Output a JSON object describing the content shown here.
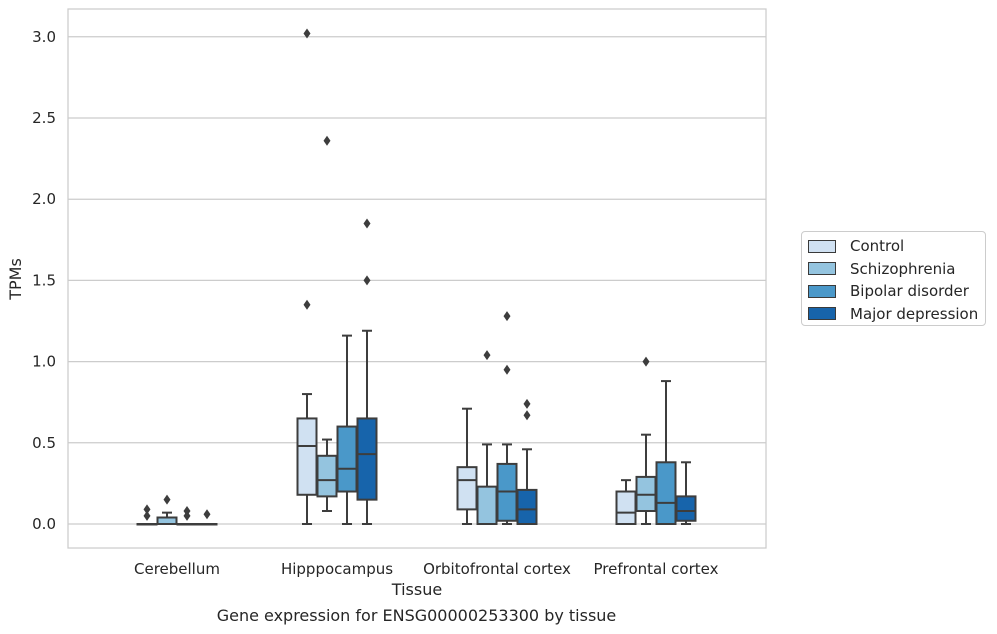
{
  "chart_data": {
    "type": "box",
    "xlabel": "Tissue",
    "ylabel": "TPMs",
    "ylim": [
      -0.15,
      3.18
    ],
    "yticks": [
      "0.0",
      "0.5",
      "1.0",
      "1.5",
      "2.0",
      "2.5",
      "3.0"
    ],
    "ytick_values": [
      0,
      0.5,
      1.0,
      1.5,
      2.0,
      2.5,
      3.0
    ],
    "grid": true,
    "legend_position": "outside-right",
    "categories": [
      "Cerebellum",
      "Hipppocampus",
      "Orbitofrontal cortex",
      "Prefrontal cortex"
    ],
    "series": [
      {
        "name": "Control",
        "color": "#d0e1f2",
        "boxes": [
          {
            "whislo": 0,
            "q1": 0,
            "med": 0,
            "q3": 0,
            "whishi": 0,
            "fliers": [
              0.05,
              0.09
            ]
          },
          {
            "whislo": 0,
            "q1": 0.18,
            "med": 0.48,
            "q3": 0.65,
            "whishi": 0.8,
            "fliers": [
              1.35,
              3.02
            ]
          },
          {
            "whislo": 0,
            "q1": 0.09,
            "med": 0.27,
            "q3": 0.35,
            "whishi": 0.71,
            "fliers": []
          },
          {
            "whislo": 0,
            "q1": 0,
            "med": 0.07,
            "q3": 0.2,
            "whishi": 0.27,
            "fliers": []
          }
        ]
      },
      {
        "name": "Schizophrenia",
        "color": "#94c4df",
        "boxes": [
          {
            "whislo": 0,
            "q1": 0,
            "med": 0,
            "q3": 0.04,
            "whishi": 0.07,
            "fliers": [
              0.15
            ]
          },
          {
            "whislo": 0.08,
            "q1": 0.17,
            "med": 0.27,
            "q3": 0.42,
            "whishi": 0.52,
            "fliers": [
              2.36
            ]
          },
          {
            "whislo": 0,
            "q1": 0,
            "med": 0,
            "q3": 0.23,
            "whishi": 0.49,
            "fliers": [
              1.04
            ]
          },
          {
            "whislo": 0,
            "q1": 0.08,
            "med": 0.18,
            "q3": 0.29,
            "whishi": 0.55,
            "fliers": [
              1.0
            ]
          }
        ]
      },
      {
        "name": "Bipolar disorder",
        "color": "#4a98c9",
        "boxes": [
          {
            "whislo": 0,
            "q1": 0,
            "med": 0,
            "q3": 0,
            "whishi": 0,
            "fliers": [
              0.05,
              0.08
            ]
          },
          {
            "whislo": 0,
            "q1": 0.2,
            "med": 0.34,
            "q3": 0.6,
            "whishi": 1.16,
            "fliers": []
          },
          {
            "whislo": 0,
            "q1": 0.02,
            "med": 0.2,
            "q3": 0.37,
            "whishi": 0.49,
            "fliers": [
              0.95,
              1.28
            ]
          },
          {
            "whislo": 0,
            "q1": 0,
            "med": 0.13,
            "q3": 0.38,
            "whishi": 0.88,
            "fliers": []
          }
        ]
      },
      {
        "name": "Major depression",
        "color": "#1764ab",
        "boxes": [
          {
            "whislo": 0,
            "q1": 0,
            "med": 0,
            "q3": 0,
            "whishi": 0,
            "fliers": [
              0.06
            ]
          },
          {
            "whislo": 0,
            "q1": 0.15,
            "med": 0.43,
            "q3": 0.65,
            "whishi": 1.19,
            "fliers": [
              1.5,
              1.85
            ]
          },
          {
            "whislo": 0,
            "q1": 0,
            "med": 0.09,
            "q3": 0.21,
            "whishi": 0.46,
            "fliers": [
              0.67,
              0.74
            ]
          },
          {
            "whislo": 0,
            "q1": 0.02,
            "med": 0.08,
            "q3": 0.17,
            "whishi": 0.38,
            "fliers": []
          }
        ]
      }
    ]
  },
  "caption": "Gene expression for ENSG00000253300 by tissue"
}
